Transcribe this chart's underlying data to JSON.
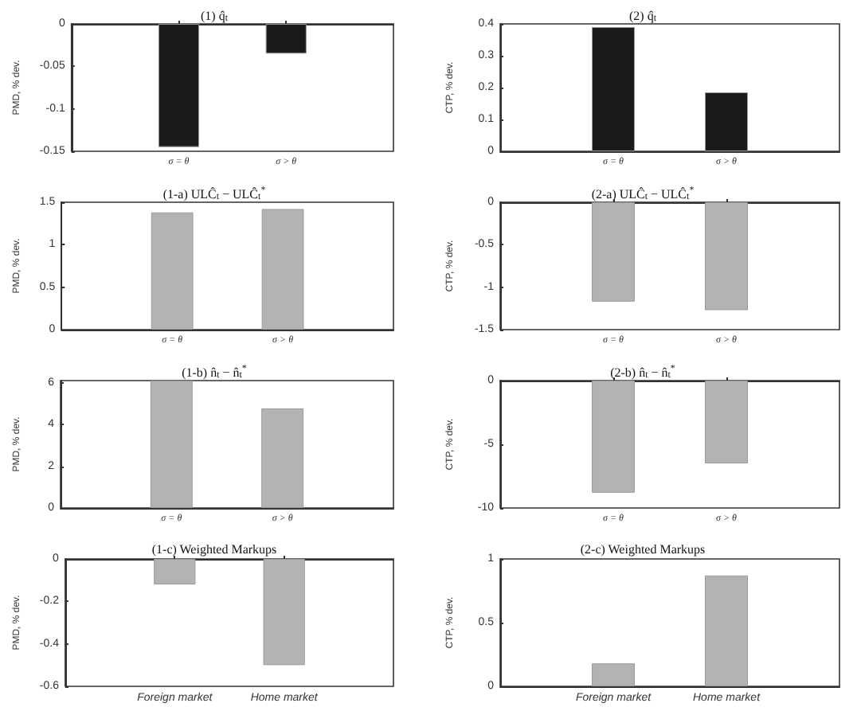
{
  "chart_data": [
    {
      "type": "bar",
      "title": "(1) q̂$_{t}$",
      "ylabel": "PMD, % dev.",
      "categories": [
        "σ = θ",
        "σ > θ"
      ],
      "values": [
        -0.145,
        -0.035
      ],
      "color": "#1a1a1a",
      "ylim": [
        -0.15,
        0
      ],
      "yticks": [
        -0.15,
        -0.1,
        -0.05,
        0
      ]
    },
    {
      "type": "bar",
      "title": "(2) q̂$_{t}$",
      "ylabel": "CTP, % dev.",
      "categories": [
        "σ = θ",
        "σ > θ"
      ],
      "values": [
        0.39,
        0.185
      ],
      "color": "#1a1a1a",
      "ylim": [
        0,
        0.4
      ],
      "yticks": [
        0,
        0.1,
        0.2,
        0.3,
        0.4
      ]
    },
    {
      "type": "bar",
      "title": "(1-a) ULĈ$_{t}$ − ULĈ$_{t}$$^{*}$",
      "ylabel": "PMD, % dev.",
      "categories": [
        "σ = θ",
        "σ > θ"
      ],
      "values": [
        1.38,
        1.42
      ],
      "color": "#b3b3b3",
      "ylim": [
        0,
        1.5
      ],
      "yticks": [
        0,
        0.5,
        1,
        1.5
      ]
    },
    {
      "type": "bar",
      "title": "(2-a) ULĈ$_{t}$ − ULĈ$_{t}$$^{*}$",
      "ylabel": "CTP, % dev.",
      "categories": [
        "σ = θ",
        "σ > θ"
      ],
      "values": [
        -1.17,
        -1.27
      ],
      "color": "#b3b3b3",
      "ylim": [
        -1.5,
        0
      ],
      "yticks": [
        -1.5,
        -1,
        -0.5,
        0
      ]
    },
    {
      "type": "bar",
      "title": "(1-b) n̂$_{t}$ − n̂$_{t}$$^{*}$",
      "ylabel": "PMD, % dev.",
      "categories": [
        "σ = θ",
        "σ > θ"
      ],
      "values": [
        6.1,
        4.77
      ],
      "color": "#b3b3b3",
      "ylim": [
        0,
        6.1
      ],
      "yticks": [
        0,
        2,
        4,
        6
      ]
    },
    {
      "type": "bar",
      "title": "(2-b) n̂$_{t}$ − n̂$_{t}$$^{*}$",
      "ylabel": "CTP, % dev.",
      "categories": [
        "σ = θ",
        "σ > θ"
      ],
      "values": [
        -8.8,
        -6.5
      ],
      "color": "#b3b3b3",
      "ylim": [
        -10,
        0
      ],
      "yticks": [
        -10,
        -5,
        0
      ]
    },
    {
      "type": "bar",
      "title": "(1-c) Weighted Markups",
      "ylabel": "PMD, % dev.",
      "categories": [
        "Foreign market",
        "Home market"
      ],
      "values": [
        -0.12,
        -0.5
      ],
      "color": "#b3b3b3",
      "ylim": [
        -0.6,
        0
      ],
      "yticks": [
        -0.6,
        -0.4,
        -0.2,
        0
      ]
    },
    {
      "type": "bar",
      "title": "(2-c) Weighted Markups",
      "ylabel": "CTP, % dev.",
      "categories": [
        "Foreign market",
        "Home market"
      ],
      "values": [
        0.18,
        0.87
      ],
      "color": "#b3b3b3",
      "ylim": [
        0,
        1
      ],
      "yticks": [
        0,
        0.5,
        1
      ]
    }
  ]
}
